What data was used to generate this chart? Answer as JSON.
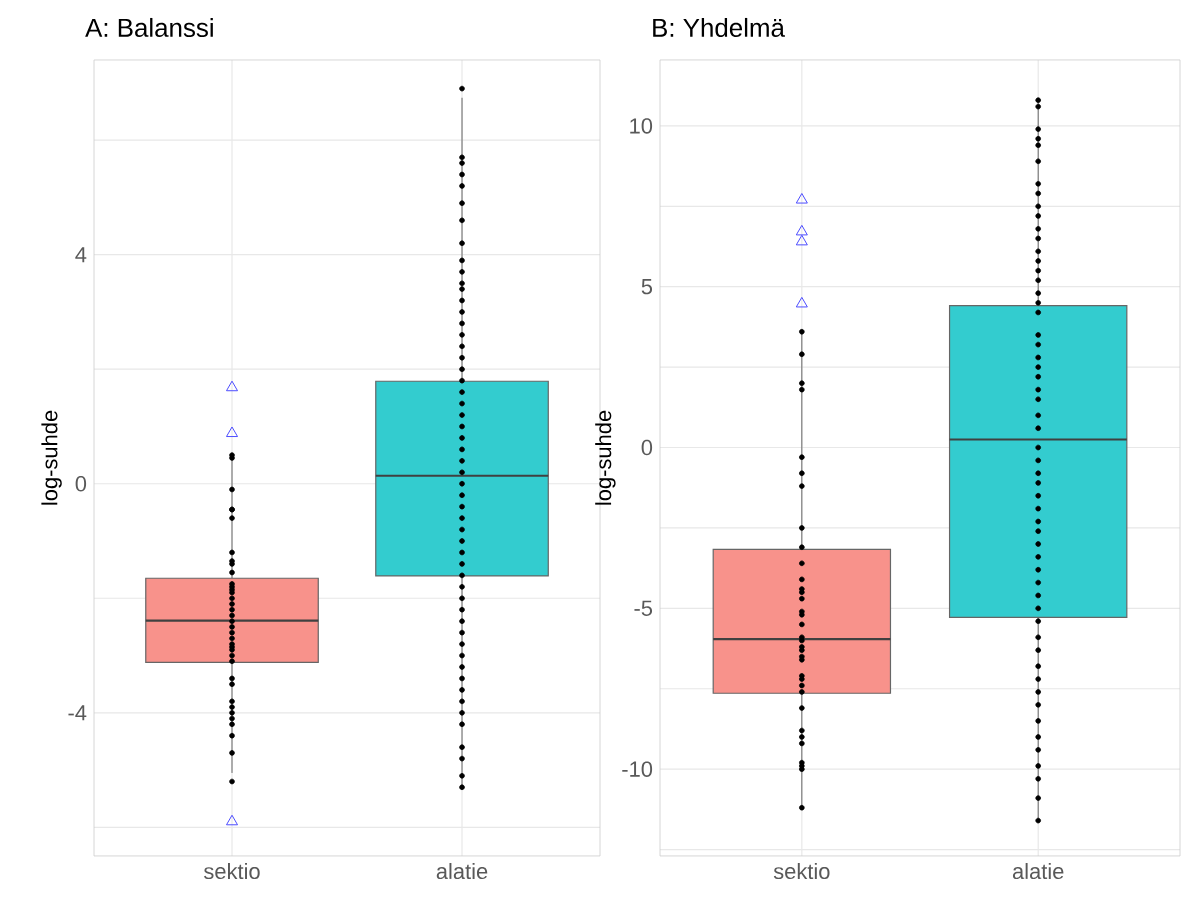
{
  "chart_data": [
    {
      "type": "box",
      "title": "A: Balanssi",
      "ylabel": "log-suhde",
      "categories": [
        "sektio",
        "alatie"
      ],
      "ylim": [
        -6.5,
        7.4
      ],
      "yticks": [
        {
          "value": -6,
          "label": null
        },
        -4,
        {
          "value": -2,
          "label": null
        },
        0,
        {
          "value": 2,
          "label": null
        },
        4,
        {
          "value": 6,
          "label": null
        }
      ],
      "grid": true,
      "series": [
        {
          "colors": [
            "#f8928b",
            "#33cccf"
          ],
          "marker": "triangle",
          "boxes": [
            {
              "low": -5.05,
              "q1": -3.12,
              "median": -2.39,
              "q3": -1.65,
              "high": 0.49,
              "outliers": [
                1.68,
                0.88,
                -5.9
              ]
            },
            {
              "low": -5.26,
              "q1": -1.61,
              "median": 0.14,
              "q3": 1.79,
              "high": 6.74
            }
          ]
        },
        {
          "type": "scatter",
          "color": "#000000",
          "marker": "circle",
          "x": [
            "sektio",
            "sektio",
            "sektio",
            "sektio",
            "sektio",
            "sektio",
            "sektio",
            "sektio",
            "sektio",
            "sektio",
            "sektio",
            "sektio",
            "sektio",
            "sektio",
            "sektio",
            "sektio",
            "sektio",
            "sektio",
            "sektio",
            "sektio",
            "sektio",
            "sektio",
            "sektio",
            "sektio",
            "sektio",
            "sektio",
            "sektio",
            "sektio",
            "sektio",
            "sektio",
            "sektio",
            "sektio",
            "sektio",
            "sektio",
            "sektio",
            "sektio",
            "sektio",
            "alatie",
            "alatie",
            "alatie",
            "alatie",
            "alatie",
            "alatie",
            "alatie",
            "alatie",
            "alatie",
            "alatie",
            "alatie",
            "alatie",
            "alatie",
            "alatie",
            "alatie",
            "alatie",
            "alatie",
            "alatie",
            "alatie",
            "alatie",
            "alatie",
            "alatie",
            "alatie",
            "alatie",
            "alatie",
            "alatie",
            "alatie",
            "alatie",
            "alatie",
            "alatie",
            "alatie",
            "alatie",
            "alatie",
            "alatie",
            "alatie",
            "alatie",
            "alatie",
            "alatie",
            "alatie",
            "alatie",
            "alatie",
            "alatie",
            "alatie",
            "alatie",
            "alatie",
            "alatie",
            "alatie",
            "alatie",
            "alatie",
            "alatie",
            "alatie",
            "alatie",
            "alatie",
            "alatie"
          ],
          "values": [
            0.5,
            0.45,
            -0.1,
            -0.45,
            -0.45,
            -0.6,
            -1.2,
            -1.35,
            -1.4,
            -1.55,
            -1.75,
            -1.8,
            -1.85,
            -1.9,
            -2.0,
            -2.1,
            -2.2,
            -2.3,
            -2.4,
            -2.5,
            -2.6,
            -2.7,
            -2.8,
            -2.85,
            -2.9,
            -3.0,
            -3.1,
            -3.4,
            -3.5,
            -3.8,
            -3.9,
            -4.0,
            -4.1,
            -4.2,
            -4.4,
            -4.7,
            -5.2,
            6.9,
            5.7,
            5.6,
            5.4,
            5.2,
            4.9,
            4.6,
            4.2,
            3.9,
            3.7,
            3.5,
            3.4,
            3.2,
            3.0,
            2.8,
            2.6,
            2.4,
            2.2,
            2.0,
            1.8,
            1.6,
            1.4,
            1.2,
            1.0,
            0.8,
            0.6,
            0.4,
            0.2,
            0.0,
            -0.2,
            -0.4,
            -0.6,
            -0.8,
            -1.0,
            -1.2,
            -1.4,
            -1.6,
            -1.8,
            -2.0,
            -2.2,
            -2.4,
            -2.6,
            -2.8,
            -3.0,
            -3.2,
            -3.4,
            -3.6,
            -3.8,
            -4.0,
            -4.2,
            -4.6,
            -4.8,
            -5.1,
            -5.3
          ]
        }
      ]
    },
    {
      "type": "box",
      "title": "B: Yhdelmä",
      "ylabel": "log-suhde",
      "categories": [
        "sektio",
        "alatie"
      ],
      "ylim": [
        -12.7,
        12.05
      ],
      "yticks": [
        {
          "value": -12.5,
          "label": null
        },
        -10,
        {
          "value": -7.5,
          "label": null
        },
        -5,
        {
          "value": -2.5,
          "label": null
        },
        0,
        {
          "value": 2.5,
          "label": null
        },
        5,
        {
          "value": 7.5,
          "label": null
        },
        10
      ],
      "grid": true,
      "series": [
        {
          "colors": [
            "#f8928b",
            "#33cccf"
          ],
          "marker": "triangle",
          "boxes": [
            {
              "low": -11.24,
              "q1": -7.64,
              "median": -5.96,
              "q3": -3.17,
              "high": 3.6,
              "outliers": [
                7.7,
                6.71,
                6.4,
                4.47
              ]
            },
            {
              "low": -11.6,
              "q1": -5.28,
              "median": 0.25,
              "q3": 4.41,
              "high": 10.8
            }
          ]
        },
        {
          "type": "scatter",
          "color": "#000000",
          "marker": "circle",
          "x": [
            "sektio",
            "sektio",
            "sektio",
            "sektio",
            "sektio",
            "sektio",
            "sektio",
            "sektio",
            "sektio",
            "sektio",
            "sektio",
            "sektio",
            "sektio",
            "sektio",
            "sektio",
            "sektio",
            "sektio",
            "sektio",
            "sektio",
            "sektio",
            "sektio",
            "sektio",
            "sektio",
            "sektio",
            "sektio",
            "sektio",
            "sektio",
            "sektio",
            "sektio",
            "sektio",
            "sektio",
            "sektio",
            "sektio",
            "sektio",
            "sektio",
            "alatie",
            "alatie",
            "alatie",
            "alatie",
            "alatie",
            "alatie",
            "alatie",
            "alatie",
            "alatie",
            "alatie",
            "alatie",
            "alatie",
            "alatie",
            "alatie",
            "alatie",
            "alatie",
            "alatie",
            "alatie",
            "alatie",
            "alatie",
            "alatie",
            "alatie",
            "alatie",
            "alatie",
            "alatie",
            "alatie",
            "alatie",
            "alatie",
            "alatie",
            "alatie",
            "alatie",
            "alatie",
            "alatie",
            "alatie",
            "alatie",
            "alatie",
            "alatie",
            "alatie",
            "alatie",
            "alatie",
            "alatie",
            "alatie",
            "alatie",
            "alatie",
            "alatie",
            "alatie",
            "alatie",
            "alatie",
            "alatie",
            "alatie",
            "alatie",
            "alatie",
            "alatie",
            "alatie",
            "alatie",
            "alatie"
          ],
          "values": [
            3.6,
            2.9,
            2.0,
            1.8,
            -0.3,
            -0.8,
            -1.2,
            -2.5,
            -3.1,
            -3.6,
            -4.1,
            -4.4,
            -4.5,
            -4.7,
            -5.1,
            -5.2,
            -5.5,
            -5.9,
            -6.0,
            -6.2,
            -6.3,
            -6.5,
            -6.6,
            -7.1,
            -7.2,
            -7.4,
            -7.6,
            -8.1,
            -8.8,
            -9.0,
            -9.2,
            -9.8,
            -9.9,
            -10.0,
            -11.2,
            10.8,
            10.6,
            9.9,
            9.6,
            9.4,
            8.9,
            8.2,
            7.9,
            7.5,
            7.2,
            6.8,
            6.5,
            6.1,
            5.8,
            5.5,
            5.2,
            4.8,
            4.5,
            4.2,
            3.5,
            3.2,
            2.8,
            2.5,
            2.2,
            1.8,
            1.5,
            1.0,
            0.6,
            0.0,
            -0.4,
            -0.8,
            -1.1,
            -1.5,
            -1.9,
            -2.3,
            -2.6,
            -3.0,
            -3.4,
            -3.8,
            -4.2,
            -4.6,
            -5.0,
            -5.4,
            -5.9,
            -6.3,
            -6.8,
            -7.2,
            -7.6,
            -8.0,
            -8.5,
            -9.0,
            -9.4,
            -9.9,
            -10.3,
            -10.9,
            -11.6
          ]
        }
      ]
    }
  ]
}
